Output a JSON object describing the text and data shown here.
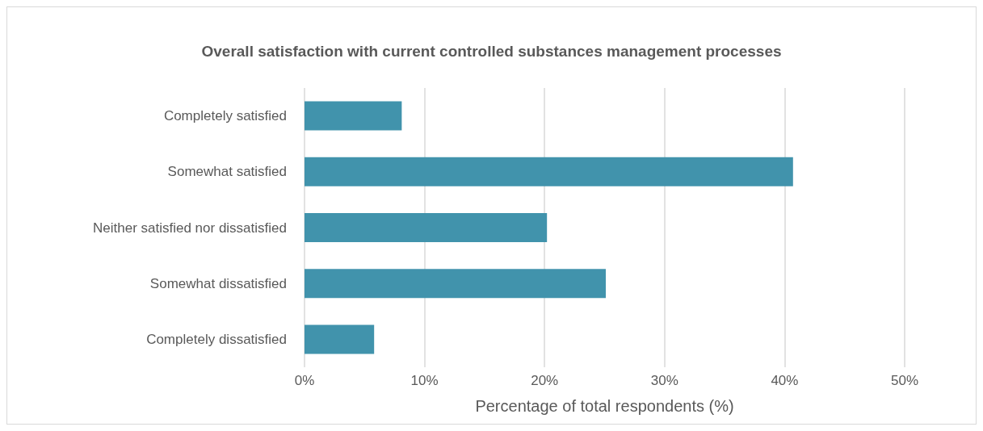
{
  "chart_data": {
    "type": "bar",
    "orientation": "horizontal",
    "title": "Overall satisfaction with current controlled substances management processes",
    "xlabel": "Percentage of total respondents (%)",
    "categories": [
      "Completely satisfied",
      "Somewhat satisfied",
      "Neither satisfied nor dissatisfied",
      "Somewhat dissatisfied",
      "Completely dissatisfied"
    ],
    "values": [
      8.1,
      40.7,
      20.2,
      25.1,
      5.8
    ],
    "color": "#4193ac",
    "xlim": [
      0,
      50
    ],
    "xticks": [
      {
        "value": 0,
        "label": "0%"
      },
      {
        "value": 10,
        "label": "10%"
      },
      {
        "value": 20,
        "label": "20%"
      },
      {
        "value": 30,
        "label": "30%"
      },
      {
        "value": 40,
        "label": "40%"
      },
      {
        "value": 50,
        "label": "50%"
      }
    ],
    "grid": "x"
  }
}
